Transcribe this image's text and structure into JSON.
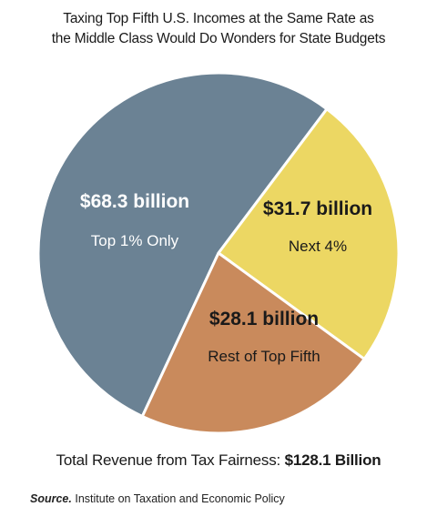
{
  "title_line1": "Taxing Top Fifth U.S. Incomes at the Same Rate as",
  "title_line2": "the Middle Class Would Do Wonders for State Budgets",
  "chart_data": {
    "type": "pie",
    "title": "Taxing Top Fifth U.S. Incomes at the Same Rate as the Middle Class Would Do Wonders for State Budgets",
    "slices": [
      {
        "label": "Top 1% Only",
        "value": 68.3,
        "value_label": "$68.3 billion",
        "color": "#6b8294",
        "text_color": "#ffffff"
      },
      {
        "label": "Next 4%",
        "value": 31.7,
        "value_label": "$31.7 billion",
        "color": "#ecd763",
        "text_color": "#1a1a1a"
      },
      {
        "label": "Rest of Top Fifth",
        "value": 28.1,
        "value_label": "$28.1 billion",
        "color": "#c98a5c",
        "text_color": "#1a1a1a"
      }
    ],
    "unit": "billion dollars"
  },
  "total_label": "Total Revenue from Tax Fairness:",
  "total_value": "$128.1 Billion",
  "source_label": "Source.",
  "source_text": "Institute on Taxation and Economic Policy"
}
